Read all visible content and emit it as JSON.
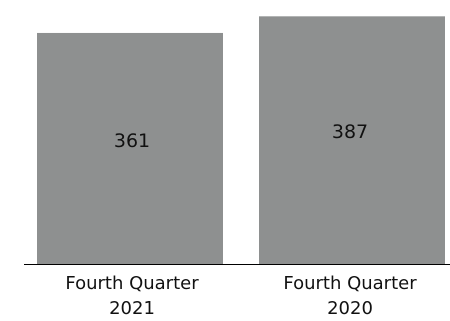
{
  "chart_data": {
    "type": "bar",
    "categories": [
      [
        "Fourth Quarter",
        "2021"
      ],
      [
        "Fourth Quarter",
        "2020"
      ]
    ],
    "values": [
      361,
      387
    ],
    "data_labels": [
      "361",
      "387"
    ],
    "title": "",
    "xlabel": "",
    "ylabel": "",
    "ylim": [
      0,
      400
    ],
    "grid": false,
    "legend": "none",
    "colors": {
      "bar": "#8e9090",
      "axis": "#000000",
      "text": "#111111"
    }
  }
}
